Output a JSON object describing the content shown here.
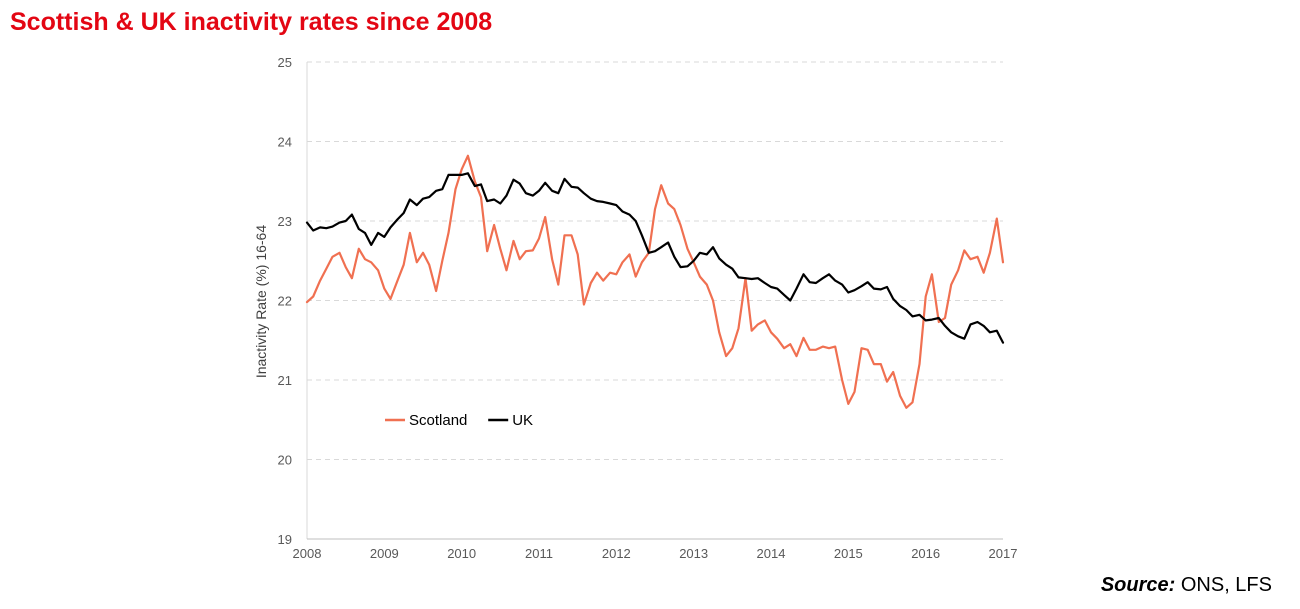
{
  "header": {
    "title": "Scottish & UK inactivity rates since 2008"
  },
  "footer": {
    "source_label": "Source:",
    "source_value": " ONS, LFS"
  },
  "chart_data": {
    "type": "line",
    "title": "Scottish & UK inactivity rates since 2008",
    "xlabel": "",
    "ylabel": "Inactivity Rate (%) 16-64",
    "xlim": [
      2008,
      2017
    ],
    "ylim": [
      19,
      25
    ],
    "x_ticks": [
      "2008",
      "2009",
      "2010",
      "2011",
      "2012",
      "2013",
      "2014",
      "2015",
      "2016",
      "2017"
    ],
    "y_ticks": [
      "19",
      "20",
      "21",
      "22",
      "23",
      "24",
      "25"
    ],
    "grid": "horizontal-dashed",
    "legend_position": "lower-left",
    "series": [
      {
        "name": "Scotland",
        "color": "#f07051",
        "points": [
          [
            2008.0,
            21.98
          ],
          [
            2008.08,
            22.05
          ],
          [
            2008.17,
            22.25
          ],
          [
            2008.25,
            22.4
          ],
          [
            2008.33,
            22.55
          ],
          [
            2008.42,
            22.6
          ],
          [
            2008.5,
            22.42
          ],
          [
            2008.58,
            22.28
          ],
          [
            2008.67,
            22.65
          ],
          [
            2008.75,
            22.52
          ],
          [
            2008.83,
            22.48
          ],
          [
            2008.92,
            22.38
          ],
          [
            2009.0,
            22.15
          ],
          [
            2009.08,
            22.02
          ],
          [
            2009.17,
            22.25
          ],
          [
            2009.25,
            22.45
          ],
          [
            2009.33,
            22.85
          ],
          [
            2009.42,
            22.48
          ],
          [
            2009.5,
            22.6
          ],
          [
            2009.58,
            22.45
          ],
          [
            2009.67,
            22.12
          ],
          [
            2009.75,
            22.5
          ],
          [
            2009.83,
            22.85
          ],
          [
            2009.92,
            23.4
          ],
          [
            2010.0,
            23.65
          ],
          [
            2010.08,
            23.82
          ],
          [
            2010.17,
            23.5
          ],
          [
            2010.25,
            23.3
          ],
          [
            2010.33,
            22.62
          ],
          [
            2010.42,
            22.95
          ],
          [
            2010.5,
            22.65
          ],
          [
            2010.58,
            22.38
          ],
          [
            2010.67,
            22.75
          ],
          [
            2010.75,
            22.52
          ],
          [
            2010.83,
            22.62
          ],
          [
            2010.92,
            22.63
          ],
          [
            2011.0,
            22.78
          ],
          [
            2011.08,
            23.05
          ],
          [
            2011.17,
            22.52
          ],
          [
            2011.25,
            22.2
          ],
          [
            2011.33,
            22.82
          ],
          [
            2011.42,
            22.82
          ],
          [
            2011.5,
            22.58
          ],
          [
            2011.58,
            21.95
          ],
          [
            2011.67,
            22.22
          ],
          [
            2011.75,
            22.35
          ],
          [
            2011.83,
            22.25
          ],
          [
            2011.92,
            22.35
          ],
          [
            2012.0,
            22.33
          ],
          [
            2012.08,
            22.48
          ],
          [
            2012.17,
            22.58
          ],
          [
            2012.25,
            22.3
          ],
          [
            2012.33,
            22.48
          ],
          [
            2012.42,
            22.6
          ],
          [
            2012.5,
            23.15
          ],
          [
            2012.58,
            23.45
          ],
          [
            2012.67,
            23.22
          ],
          [
            2012.75,
            23.15
          ],
          [
            2012.83,
            22.95
          ],
          [
            2012.92,
            22.65
          ],
          [
            2013.0,
            22.48
          ],
          [
            2013.08,
            22.3
          ],
          [
            2013.17,
            22.2
          ],
          [
            2013.25,
            22.0
          ],
          [
            2013.33,
            21.6
          ],
          [
            2013.42,
            21.3
          ],
          [
            2013.5,
            21.4
          ],
          [
            2013.58,
            21.65
          ],
          [
            2013.67,
            22.28
          ],
          [
            2013.75,
            21.62
          ],
          [
            2013.83,
            21.7
          ],
          [
            2013.92,
            21.75
          ],
          [
            2014.0,
            21.6
          ],
          [
            2014.08,
            21.52
          ],
          [
            2014.17,
            21.4
          ],
          [
            2014.25,
            21.45
          ],
          [
            2014.33,
            21.3
          ],
          [
            2014.42,
            21.53
          ],
          [
            2014.5,
            21.38
          ],
          [
            2014.58,
            21.38
          ],
          [
            2014.67,
            21.42
          ],
          [
            2014.75,
            21.4
          ],
          [
            2014.83,
            21.42
          ],
          [
            2014.92,
            21.0
          ],
          [
            2015.0,
            20.7
          ],
          [
            2015.08,
            20.85
          ],
          [
            2015.17,
            21.4
          ],
          [
            2015.25,
            21.38
          ],
          [
            2015.33,
            21.2
          ],
          [
            2015.42,
            21.2
          ],
          [
            2015.5,
            20.98
          ],
          [
            2015.58,
            21.1
          ],
          [
            2015.67,
            20.8
          ],
          [
            2015.75,
            20.65
          ],
          [
            2015.83,
            20.72
          ],
          [
            2015.92,
            21.2
          ],
          [
            2016.0,
            22.05
          ],
          [
            2016.08,
            22.33
          ],
          [
            2016.17,
            21.73
          ],
          [
            2016.25,
            21.78
          ],
          [
            2016.33,
            22.2
          ],
          [
            2016.42,
            22.38
          ],
          [
            2016.5,
            22.63
          ],
          [
            2016.58,
            22.52
          ],
          [
            2016.67,
            22.55
          ],
          [
            2016.75,
            22.35
          ],
          [
            2016.83,
            22.6
          ],
          [
            2016.92,
            23.03
          ],
          [
            2017.0,
            22.48
          ]
        ]
      },
      {
        "name": "UK",
        "color": "#000000",
        "points": [
          [
            2008.0,
            22.98
          ],
          [
            2008.08,
            22.88
          ],
          [
            2008.17,
            22.92
          ],
          [
            2008.25,
            22.91
          ],
          [
            2008.33,
            22.93
          ],
          [
            2008.42,
            22.98
          ],
          [
            2008.5,
            23.0
          ],
          [
            2008.58,
            23.08
          ],
          [
            2008.67,
            22.9
          ],
          [
            2008.75,
            22.85
          ],
          [
            2008.83,
            22.7
          ],
          [
            2008.92,
            22.85
          ],
          [
            2009.0,
            22.8
          ],
          [
            2009.08,
            22.92
          ],
          [
            2009.17,
            23.02
          ],
          [
            2009.25,
            23.1
          ],
          [
            2009.33,
            23.27
          ],
          [
            2009.42,
            23.2
          ],
          [
            2009.5,
            23.28
          ],
          [
            2009.58,
            23.3
          ],
          [
            2009.67,
            23.38
          ],
          [
            2009.75,
            23.4
          ],
          [
            2009.83,
            23.58
          ],
          [
            2009.92,
            23.58
          ],
          [
            2010.0,
            23.58
          ],
          [
            2010.08,
            23.6
          ],
          [
            2010.17,
            23.44
          ],
          [
            2010.25,
            23.46
          ],
          [
            2010.33,
            23.25
          ],
          [
            2010.42,
            23.27
          ],
          [
            2010.5,
            23.22
          ],
          [
            2010.58,
            23.32
          ],
          [
            2010.67,
            23.52
          ],
          [
            2010.75,
            23.47
          ],
          [
            2010.83,
            23.35
          ],
          [
            2010.92,
            23.32
          ],
          [
            2011.0,
            23.38
          ],
          [
            2011.08,
            23.48
          ],
          [
            2011.17,
            23.38
          ],
          [
            2011.25,
            23.35
          ],
          [
            2011.33,
            23.53
          ],
          [
            2011.42,
            23.43
          ],
          [
            2011.5,
            23.42
          ],
          [
            2011.58,
            23.35
          ],
          [
            2011.67,
            23.28
          ],
          [
            2011.75,
            23.25
          ],
          [
            2011.83,
            23.24
          ],
          [
            2011.92,
            23.22
          ],
          [
            2012.0,
            23.2
          ],
          [
            2012.08,
            23.12
          ],
          [
            2012.17,
            23.08
          ],
          [
            2012.25,
            23.0
          ],
          [
            2012.33,
            22.82
          ],
          [
            2012.42,
            22.6
          ],
          [
            2012.5,
            22.62
          ],
          [
            2012.58,
            22.67
          ],
          [
            2012.67,
            22.73
          ],
          [
            2012.75,
            22.55
          ],
          [
            2012.83,
            22.42
          ],
          [
            2012.92,
            22.43
          ],
          [
            2013.0,
            22.5
          ],
          [
            2013.08,
            22.6
          ],
          [
            2013.17,
            22.58
          ],
          [
            2013.25,
            22.67
          ],
          [
            2013.33,
            22.53
          ],
          [
            2013.42,
            22.45
          ],
          [
            2013.5,
            22.4
          ],
          [
            2013.58,
            22.29
          ],
          [
            2013.67,
            22.28
          ],
          [
            2013.75,
            22.27
          ],
          [
            2013.83,
            22.28
          ],
          [
            2013.92,
            22.22
          ],
          [
            2014.0,
            22.17
          ],
          [
            2014.08,
            22.15
          ],
          [
            2014.17,
            22.07
          ],
          [
            2014.25,
            22.0
          ],
          [
            2014.33,
            22.15
          ],
          [
            2014.42,
            22.33
          ],
          [
            2014.5,
            22.23
          ],
          [
            2014.58,
            22.22
          ],
          [
            2014.67,
            22.28
          ],
          [
            2014.75,
            22.33
          ],
          [
            2014.83,
            22.25
          ],
          [
            2014.92,
            22.2
          ],
          [
            2015.0,
            22.1
          ],
          [
            2015.08,
            22.13
          ],
          [
            2015.17,
            22.18
          ],
          [
            2015.25,
            22.23
          ],
          [
            2015.33,
            22.15
          ],
          [
            2015.42,
            22.14
          ],
          [
            2015.5,
            22.17
          ],
          [
            2015.58,
            22.02
          ],
          [
            2015.67,
            21.93
          ],
          [
            2015.75,
            21.88
          ],
          [
            2015.83,
            21.8
          ],
          [
            2015.92,
            21.82
          ],
          [
            2016.0,
            21.75
          ],
          [
            2016.08,
            21.76
          ],
          [
            2016.17,
            21.78
          ],
          [
            2016.25,
            21.68
          ],
          [
            2016.33,
            21.6
          ],
          [
            2016.42,
            21.55
          ],
          [
            2016.5,
            21.52
          ],
          [
            2016.58,
            21.7
          ],
          [
            2016.67,
            21.73
          ],
          [
            2016.75,
            21.68
          ],
          [
            2016.83,
            21.6
          ],
          [
            2016.92,
            21.62
          ],
          [
            2017.0,
            21.47
          ]
        ]
      }
    ]
  }
}
